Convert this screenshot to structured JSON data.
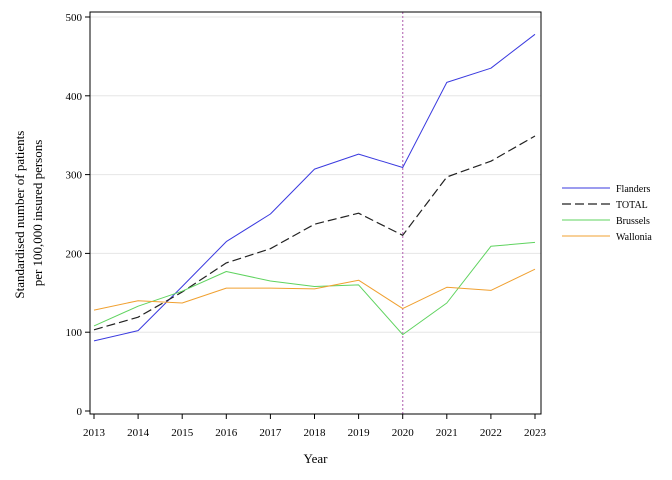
{
  "chart_data": {
    "type": "line",
    "title": "",
    "xlabel": "Year",
    "ylabel": [
      "Standardised number of patients",
      "per 100,000 insured persons"
    ],
    "categories": [
      "2013",
      "2014",
      "2015",
      "2016",
      "2017",
      "2018",
      "2019",
      "2020",
      "2021",
      "2022",
      "2023"
    ],
    "ylim": [
      0,
      500
    ],
    "yticks": [
      0,
      100,
      200,
      300,
      400,
      500
    ],
    "grid": "horizontal",
    "legend_position": "right",
    "vline": {
      "x": "2020",
      "color": "#c080c0",
      "style": "dotted"
    },
    "series": [
      {
        "name": "Flanders",
        "color": "#3a3adf",
        "dash": "solid",
        "values": [
          89,
          102,
          158,
          215,
          250,
          307,
          326,
          309,
          417,
          435,
          478
        ]
      },
      {
        "name": "TOTAL",
        "color": "#222222",
        "dash": "dashed",
        "values": [
          103,
          119,
          151,
          188,
          206,
          237,
          251,
          223,
          297,
          317,
          349
        ]
      },
      {
        "name": "Brussels",
        "color": "#5fd35f",
        "dash": "solid",
        "values": [
          108,
          133,
          152,
          177,
          165,
          158,
          160,
          97,
          137,
          209,
          214
        ]
      },
      {
        "name": "Wallonia",
        "color": "#f0a030",
        "dash": "solid",
        "values": [
          128,
          140,
          137,
          156,
          156,
          155,
          166,
          130,
          157,
          153,
          180
        ]
      }
    ]
  }
}
